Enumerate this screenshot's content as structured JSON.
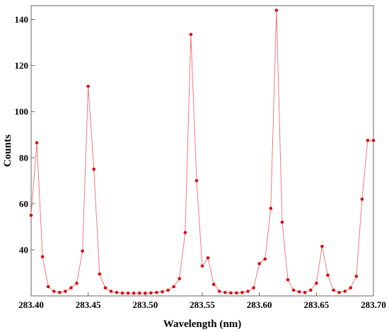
{
  "chart_data": {
    "type": "line",
    "xlabel": "Wavelength (nm)",
    "ylabel": "Counts",
    "xlim": [
      283.4,
      283.7
    ],
    "ylim": [
      20,
      146
    ],
    "x_ticks": [
      "283.40",
      "283.45",
      "283.50",
      "283.55",
      "283.60",
      "283.65",
      "283.70"
    ],
    "x_tick_values": [
      283.4,
      283.45,
      283.5,
      283.55,
      283.6,
      283.65,
      283.7
    ],
    "y_ticks": [
      "40",
      "60",
      "80",
      "100",
      "120",
      "140"
    ],
    "y_tick_values": [
      40,
      60,
      80,
      100,
      120,
      140
    ],
    "grid": false,
    "legend": "none",
    "colors": {
      "line": "#f07a7a",
      "marker": "#d80f16",
      "frame": "#666666"
    },
    "series": [
      {
        "x": [
          283.4,
          283.405,
          283.41,
          283.415,
          283.42,
          283.425,
          283.43,
          283.435,
          283.44,
          283.445,
          283.45,
          283.455,
          283.46,
          283.465,
          283.47,
          283.475,
          283.48,
          283.485,
          283.49,
          283.495,
          283.5,
          283.505,
          283.51,
          283.515,
          283.52,
          283.525,
          283.53,
          283.535,
          283.54,
          283.545,
          283.55,
          283.555,
          283.56,
          283.565,
          283.57,
          283.575,
          283.58,
          283.585,
          283.59,
          283.595,
          283.6,
          283.605,
          283.61,
          283.615,
          283.62,
          283.625,
          283.63,
          283.635,
          283.64,
          283.645,
          283.65,
          283.655,
          283.66,
          283.665,
          283.67,
          283.675,
          283.68,
          283.685,
          283.69,
          283.695,
          283.7
        ],
        "values": [
          55,
          86.5,
          37,
          24,
          22,
          21.5,
          22,
          23.5,
          25.5,
          39.5,
          111,
          75,
          29.5,
          23.5,
          22,
          21.5,
          21.2,
          21.2,
          21.2,
          21.2,
          21.2,
          21.3,
          21.5,
          21.8,
          22.5,
          24,
          27.5,
          47.5,
          133.5,
          70,
          33,
          36.5,
          25,
          22,
          21.5,
          21.3,
          21.3,
          21.5,
          22,
          23.5,
          34,
          36,
          58,
          144,
          52,
          27,
          22.5,
          21.8,
          21.5,
          22.5,
          25.5,
          41.5,
          29,
          22.5,
          21.5,
          22,
          23.5,
          28.5,
          62,
          87.5,
          87.5
        ]
      }
    ]
  }
}
